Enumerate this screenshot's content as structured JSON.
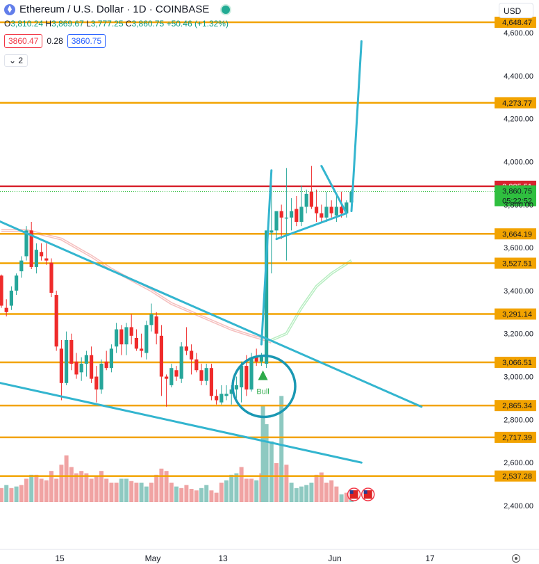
{
  "header": {
    "symbol_title": "Ethereum / U.S. Dollar · 1D · COINBASE",
    "ohlc": {
      "o": "3,810.24",
      "h": "3,869.67",
      "l": "3,777.25",
      "c": "3,860.75",
      "change": "+50.46 (+1.32%)"
    }
  },
  "quote": {
    "bid": "3860.47",
    "spread": "0.28",
    "ask": "3860.75"
  },
  "collapse_label": "2",
  "currency": "USD",
  "colors": {
    "up": "#26a69a",
    "down": "#ef2b2b",
    "level": "#f2a300",
    "drawing": "#33b5cf",
    "ma": "#e8716f",
    "ma_projection": "#7ee08f",
    "vol_up": "#8ec9c1",
    "vol_down": "#f0a3a3",
    "current_price": "#2fbf3f",
    "resistance": "#d8242f"
  },
  "chart_data": {
    "type": "candlestick",
    "title": "Ethereum / U.S. Dollar · 1D · COINBASE",
    "y_range": [
      2320,
      4670
    ],
    "y_ticks": [
      "4,600.00",
      "4,400.00",
      "4,200.00",
      "4,000.00",
      "3,800.00",
      "3,600.00",
      "3,400.00",
      "3,200.00",
      "3,000.00",
      "2,800.00",
      "2,600.00",
      "2,400.00"
    ],
    "x_labels": [
      "15",
      "May",
      "13",
      "Jun",
      "17"
    ],
    "levels": [
      "4,648.47",
      "4,273.77",
      "3,664.19",
      "3,527.51",
      "3,291.14",
      "3,066.51",
      "2,865.34",
      "2,717.39",
      "2,537.28"
    ],
    "resistance": "3,885.51",
    "last_price": "3,860.75",
    "countdown": "05:22:52",
    "annotation": "Bull",
    "candles": [
      [
        3470,
        3475,
        3320,
        3330
      ],
      [
        3320,
        3360,
        3280,
        3300
      ],
      [
        3330,
        3420,
        3310,
        3400
      ],
      [
        3400,
        3480,
        3380,
        3470
      ],
      [
        3490,
        3560,
        3460,
        3540
      ],
      [
        3560,
        3700,
        3540,
        3680
      ],
      [
        3680,
        3720,
        3500,
        3510
      ],
      [
        3510,
        3620,
        3480,
        3590
      ],
      [
        3580,
        3620,
        3540,
        3560
      ],
      [
        3550,
        3620,
        3520,
        3540
      ],
      [
        3530,
        3550,
        3370,
        3390
      ],
      [
        3380,
        3400,
        3120,
        3140
      ],
      [
        3130,
        3170,
        2890,
        2970
      ],
      [
        2970,
        3210,
        2960,
        3170
      ],
      [
        3170,
        3200,
        3030,
        3060
      ],
      [
        3070,
        3110,
        2990,
        3010
      ],
      [
        3020,
        3090,
        2980,
        3060
      ],
      [
        3060,
        3120,
        3000,
        3100
      ],
      [
        3100,
        3140,
        2970,
        2990
      ],
      [
        3000,
        3050,
        2880,
        2940
      ],
      [
        2940,
        3080,
        2920,
        3060
      ],
      [
        3070,
        3120,
        3030,
        3040
      ],
      [
        3040,
        3150,
        3020,
        3130
      ],
      [
        3140,
        3250,
        3110,
        3220
      ],
      [
        3220,
        3240,
        3100,
        3150
      ],
      [
        3150,
        3250,
        3100,
        3230
      ],
      [
        3230,
        3290,
        3150,
        3190
      ],
      [
        3180,
        3220,
        3120,
        3130
      ],
      [
        3130,
        3200,
        3090,
        3120
      ],
      [
        3110,
        3260,
        3080,
        3240
      ],
      [
        3240,
        3340,
        3210,
        3290
      ],
      [
        3280,
        3300,
        3150,
        3200
      ],
      [
        3190,
        3240,
        2910,
        3000
      ],
      [
        3000,
        3010,
        2860,
        2990
      ],
      [
        2960,
        3060,
        2950,
        3040
      ],
      [
        3030,
        3050,
        2980,
        3000
      ],
      [
        2990,
        3160,
        2970,
        3140
      ],
      [
        3140,
        3230,
        3100,
        3120
      ],
      [
        3120,
        3150,
        3010,
        3080
      ],
      [
        3080,
        3110,
        3020,
        3030
      ],
      [
        3030,
        3060,
        2960,
        2980
      ],
      [
        2980,
        3060,
        2960,
        3040
      ],
      [
        3040,
        3060,
        2890,
        2910
      ],
      [
        2910,
        2940,
        2870,
        2890
      ],
      [
        2880,
        2960,
        2870,
        2920
      ],
      [
        2910,
        2960,
        2890,
        2920
      ],
      [
        2920,
        2960,
        2870,
        2940
      ],
      [
        2940,
        3000,
        2900,
        2960
      ],
      [
        2950,
        3070,
        2880,
        3050
      ],
      [
        3050,
        3100,
        2910,
        2940
      ],
      [
        2940,
        3110,
        2930,
        3090
      ],
      [
        3090,
        3130,
        3050,
        3070
      ],
      [
        3070,
        3110,
        3050,
        3100
      ],
      [
        3060,
        3660,
        3040,
        3680
      ],
      [
        3670,
        3960,
        3480,
        3680
      ],
      [
        3680,
        3770,
        3640,
        3770
      ],
      [
        3770,
        3800,
        3640,
        3740
      ],
      [
        3740,
        3970,
        3540,
        3740
      ],
      [
        3740,
        3830,
        3680,
        3770
      ],
      [
        3780,
        3840,
        3700,
        3720
      ],
      [
        3720,
        3890,
        3700,
        3790
      ],
      [
        3790,
        3870,
        3760,
        3850
      ],
      [
        3860,
        3980,
        3780,
        3790
      ],
      [
        3790,
        3870,
        3720,
        3760
      ],
      [
        3760,
        3800,
        3720,
        3740
      ],
      [
        3740,
        3860,
        3720,
        3790
      ],
      [
        3790,
        3820,
        3740,
        3760
      ],
      [
        3750,
        3840,
        3720,
        3790
      ],
      [
        3790,
        3860,
        3740,
        3760
      ],
      [
        3760,
        3820,
        3740,
        3810
      ],
      [
        3810,
        3870,
        3780,
        3860
      ]
    ],
    "volume": [
      [
        0.18,
        1
      ],
      [
        0.22,
        0
      ],
      [
        0.18,
        1
      ],
      [
        0.2,
        0
      ],
      [
        0.22,
        1
      ],
      [
        0.3,
        1
      ],
      [
        0.35,
        0
      ],
      [
        0.35,
        1
      ],
      [
        0.3,
        1
      ],
      [
        0.28,
        1
      ],
      [
        0.4,
        1
      ],
      [
        0.3,
        1
      ],
      [
        0.48,
        1
      ],
      [
        0.6,
        1
      ],
      [
        0.45,
        1
      ],
      [
        0.37,
        1
      ],
      [
        0.4,
        1
      ],
      [
        0.37,
        1
      ],
      [
        0.3,
        1
      ],
      [
        0.33,
        1
      ],
      [
        0.4,
        1
      ],
      [
        0.3,
        1
      ],
      [
        0.25,
        1
      ],
      [
        0.25,
        1
      ],
      [
        0.3,
        0
      ],
      [
        0.3,
        0
      ],
      [
        0.27,
        1
      ],
      [
        0.25,
        1
      ],
      [
        0.25,
        0
      ],
      [
        0.2,
        0
      ],
      [
        0.25,
        1
      ],
      [
        0.35,
        1
      ],
      [
        0.43,
        1
      ],
      [
        0.4,
        1
      ],
      [
        0.25,
        1
      ],
      [
        0.2,
        0
      ],
      [
        0.18,
        1
      ],
      [
        0.22,
        1
      ],
      [
        0.17,
        1
      ],
      [
        0.15,
        1
      ],
      [
        0.18,
        0
      ],
      [
        0.22,
        0
      ],
      [
        0.15,
        1
      ],
      [
        0.12,
        1
      ],
      [
        0.25,
        1
      ],
      [
        0.28,
        0
      ],
      [
        0.35,
        0
      ],
      [
        0.37,
        0
      ],
      [
        0.45,
        1
      ],
      [
        0.3,
        1
      ],
      [
        0.3,
        1
      ],
      [
        0.28,
        0
      ],
      [
        0.37,
        1
      ],
      [
        1.0,
        0
      ],
      [
        0.78,
        0
      ],
      [
        0.5,
        1
      ],
      [
        0.45,
        1
      ],
      [
        0.48,
        1
      ],
      [
        0.25,
        0
      ],
      [
        0.18,
        0
      ],
      [
        0.2,
        0
      ],
      [
        0.22,
        0
      ],
      [
        0.25,
        0
      ],
      [
        0.35,
        1
      ],
      [
        0.38,
        1
      ],
      [
        0.25,
        1
      ],
      [
        0.28,
        1
      ],
      [
        0.2,
        1
      ],
      [
        0.1,
        0
      ],
      [
        0.12,
        1
      ],
      [
        0.12,
        0
      ]
    ],
    "bull_volume_bars": [
      2865,
      2910
    ],
    "ma": [
      [
        0,
        3680
      ],
      [
        5,
        3680
      ],
      [
        12,
        3640
      ],
      [
        18,
        3560
      ],
      [
        22,
        3500
      ],
      [
        26,
        3450
      ],
      [
        30,
        3400
      ],
      [
        34,
        3340
      ],
      [
        38,
        3300
      ],
      [
        42,
        3260
      ],
      [
        46,
        3220
      ],
      [
        50,
        3190
      ],
      [
        53,
        3170
      ],
      [
        54,
        3160
      ]
    ],
    "ma_projection": [
      [
        54,
        3170
      ],
      [
        57,
        3200
      ],
      [
        60,
        3320
      ],
      [
        63,
        3420
      ],
      [
        66,
        3480
      ],
      [
        70,
        3540
      ]
    ],
    "drawings": [
      {
        "from": [
          -6,
          3780
        ],
        "to": [
          84,
          2860
        ]
      },
      {
        "from": [
          -6,
          3000
        ],
        "to": [
          72,
          2600
        ]
      },
      {
        "from": [
          52,
          3150
        ],
        "to": [
          54,
          3960
        ]
      },
      {
        "from": [
          64,
          3980
        ],
        "to": [
          69,
          3760
        ]
      },
      {
        "from": [
          55,
          3640
        ],
        "to": [
          69,
          3760
        ]
      },
      {
        "from": [
          70,
          3770
        ],
        "to": [
          72,
          4560
        ]
      }
    ]
  }
}
